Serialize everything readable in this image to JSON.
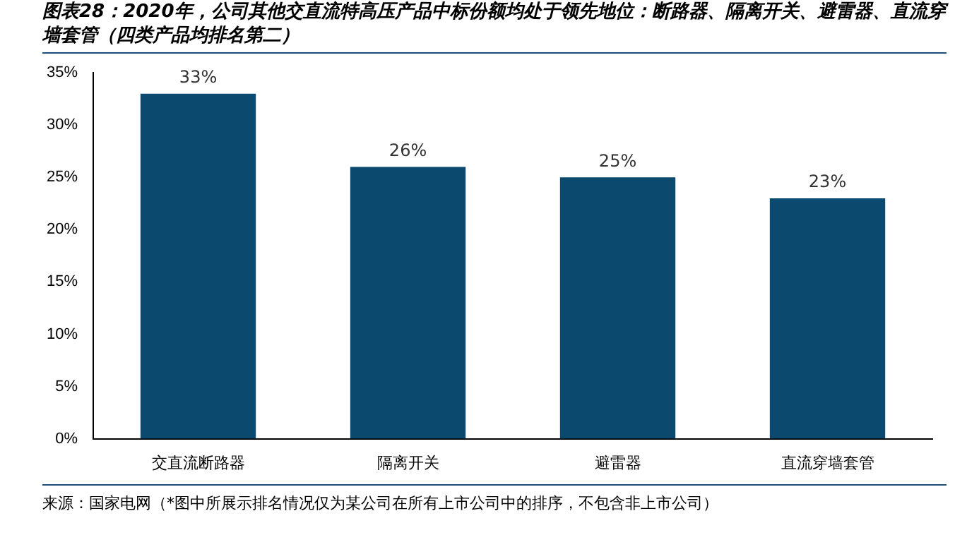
{
  "chart_data": {
    "type": "bar",
    "title": "图表28：2020年，公司其他交直流特高压产品中标份额均处于领先地位：断路器、隔离开关、避雷器、直流穿墙套管（四类产品均排名第二）",
    "categories": [
      "交直流断路器",
      "隔离开关",
      "避雷器",
      "直流穿墙套管"
    ],
    "values": [
      33,
      26,
      25,
      23
    ],
    "value_labels": [
      "33%",
      "26%",
      "25%",
      "23%"
    ],
    "color": "#0b4a6e",
    "ylim": [
      0,
      35
    ],
    "yticks": [
      {
        "value": 0,
        "label": "0%"
      },
      {
        "value": 5,
        "label": "5%"
      },
      {
        "value": 10,
        "label": "10%"
      },
      {
        "value": 15,
        "label": "15%"
      },
      {
        "value": 20,
        "label": "20%"
      },
      {
        "value": 25,
        "label": "25%"
      },
      {
        "value": 30,
        "label": "30%"
      },
      {
        "value": 35,
        "label": "35%"
      }
    ],
    "grid": false,
    "legend": false,
    "annotations": [
      "来源：国家电网（*图中所展示排名情况仅为某公司在所有上市公司中的排序，不包含非上市公司）"
    ]
  }
}
